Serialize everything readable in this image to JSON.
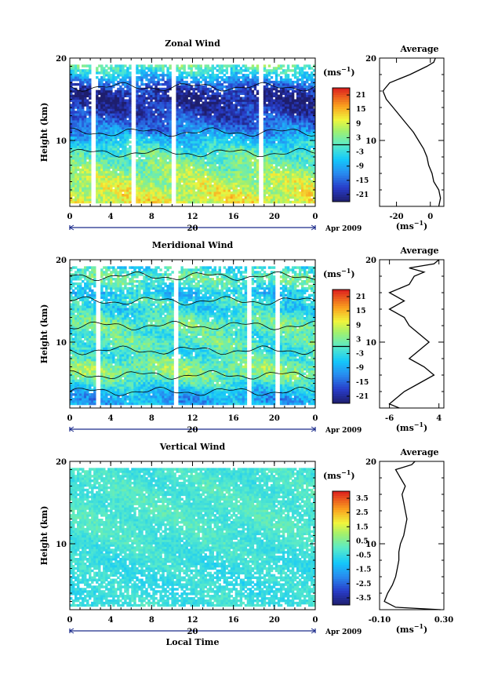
{
  "chart_data": [
    {
      "type": "heatmap",
      "title": "Zonal Wind",
      "ylabel": "Height (km)",
      "xlabel": "",
      "xlim": [
        0,
        24
      ],
      "ylim": [
        2,
        20
      ],
      "x_ticks": [
        "0",
        "4",
        "8",
        "12",
        "16",
        "20",
        "0"
      ],
      "y_ticks": [
        "10",
        "20"
      ],
      "date_marker": "20",
      "date_label": "Apr 2009",
      "colorbar": {
        "unit_prefix": "(ms",
        "unit_exp": "−1",
        "unit_suffix": ")",
        "ticks": [
          "21",
          "15",
          "9",
          "3",
          "-3",
          "-9",
          "-15",
          "-21"
        ],
        "range": [
          -24,
          24
        ],
        "zero_line": 0
      },
      "field_profile": [
        {
          "h": 3,
          "v": 10
        },
        {
          "h": 5,
          "v": 7
        },
        {
          "h": 7,
          "v": 3
        },
        {
          "h": 8.5,
          "v": 0
        },
        {
          "h": 10,
          "v": -6
        },
        {
          "h": 11,
          "v": -11
        },
        {
          "h": 12,
          "v": -15
        },
        {
          "h": 13,
          "v": -18
        },
        {
          "h": 14,
          "v": -20
        },
        {
          "h": 15,
          "v": -22
        },
        {
          "h": 16,
          "v": -20
        },
        {
          "h": 17,
          "v": -14
        },
        {
          "h": 18,
          "v": -6
        },
        {
          "h": 19,
          "v": 1
        },
        {
          "h": 20,
          "v": 4
        }
      ],
      "gaps": [
        2.3,
        6.2,
        10.2,
        18.6
      ],
      "average_panel": {
        "title": "Average",
        "xlim": [
          -30,
          8
        ],
        "x_ticks": [
          "-20",
          "0"
        ],
        "y_ticks": [
          "10",
          "20"
        ],
        "ylim": [
          2,
          20
        ],
        "unit_prefix": "(ms",
        "unit_exp": "−1",
        "unit_suffix": ")",
        "profile": [
          {
            "h": 2,
            "v": 5
          },
          {
            "h": 3,
            "v": 6
          },
          {
            "h": 4,
            "v": 5
          },
          {
            "h": 5,
            "v": 2
          },
          {
            "h": 6,
            "v": 1
          },
          {
            "h": 7,
            "v": -1
          },
          {
            "h": 8,
            "v": -2
          },
          {
            "h": 9,
            "v": -4
          },
          {
            "h": 10,
            "v": -7
          },
          {
            "h": 11,
            "v": -10
          },
          {
            "h": 12,
            "v": -14
          },
          {
            "h": 13,
            "v": -18
          },
          {
            "h": 14,
            "v": -22
          },
          {
            "h": 15,
            "v": -26
          },
          {
            "h": 16,
            "v": -28
          },
          {
            "h": 17,
            "v": -24
          },
          {
            "h": 18,
            "v": -12
          },
          {
            "h": 19,
            "v": -2
          },
          {
            "h": 19.5,
            "v": 2
          },
          {
            "h": 20,
            "v": 3
          }
        ]
      }
    },
    {
      "type": "heatmap",
      "title": "Meridional Wind",
      "ylabel": "Height (km)",
      "xlabel": "",
      "xlim": [
        0,
        24
      ],
      "ylim": [
        2,
        20
      ],
      "x_ticks": [
        "0",
        "4",
        "8",
        "12",
        "16",
        "20",
        "0"
      ],
      "y_ticks": [
        "10",
        "20"
      ],
      "date_marker": "20",
      "date_label": "Apr 2009",
      "colorbar": {
        "unit_prefix": "(ms",
        "unit_exp": "−1",
        "unit_suffix": ")",
        "ticks": [
          "21",
          "15",
          "9",
          "3",
          "-3",
          "-9",
          "-15",
          "-21"
        ],
        "range": [
          -24,
          24
        ],
        "zero_line": 0
      },
      "field_profile": [
        {
          "h": 2,
          "v": -6
        },
        {
          "h": 3,
          "v": -10
        },
        {
          "h": 4,
          "v": -7
        },
        {
          "h": 5,
          "v": -2
        },
        {
          "h": 6,
          "v": 3
        },
        {
          "h": 7,
          "v": 4
        },
        {
          "h": 8,
          "v": 0
        },
        {
          "h": 9,
          "v": -2
        },
        {
          "h": 10,
          "v": 1
        },
        {
          "h": 11,
          "v": -1
        },
        {
          "h": 12,
          "v": 2
        },
        {
          "h": 13,
          "v": 0
        },
        {
          "h": 14,
          "v": -4
        },
        {
          "h": 15,
          "v": -2
        },
        {
          "h": 16,
          "v": -6
        },
        {
          "h": 17,
          "v": -1
        },
        {
          "h": 18,
          "v": 1
        },
        {
          "h": 19,
          "v": -3
        },
        {
          "h": 20,
          "v": 2
        }
      ],
      "gaps": [
        2.7,
        10.3,
        17.6,
        20.4
      ],
      "average_panel": {
        "title": "Average",
        "xlim": [
          -8,
          5
        ],
        "x_ticks": [
          "-6",
          "4"
        ],
        "y_ticks": [
          "10",
          "20"
        ],
        "ylim": [
          2,
          20
        ],
        "unit_prefix": "(ms",
        "unit_exp": "−1",
        "unit_suffix": ")",
        "profile": [
          {
            "h": 2,
            "v": -4
          },
          {
            "h": 2.5,
            "v": -6
          },
          {
            "h": 3,
            "v": -5
          },
          {
            "h": 4,
            "v": -3
          },
          {
            "h": 5,
            "v": 0
          },
          {
            "h": 6,
            "v": 3
          },
          {
            "h": 7,
            "v": 1
          },
          {
            "h": 8,
            "v": -2
          },
          {
            "h": 9,
            "v": 0
          },
          {
            "h": 10,
            "v": 2
          },
          {
            "h": 11,
            "v": 0
          },
          {
            "h": 12,
            "v": -2
          },
          {
            "h": 13,
            "v": -3
          },
          {
            "h": 14,
            "v": -6
          },
          {
            "h": 15,
            "v": -3
          },
          {
            "h": 16,
            "v": -6
          },
          {
            "h": 17,
            "v": -2
          },
          {
            "h": 18,
            "v": -1
          },
          {
            "h": 18.5,
            "v": 1
          },
          {
            "h": 19,
            "v": -2
          },
          {
            "h": 19.5,
            "v": 3
          },
          {
            "h": 20,
            "v": 4
          }
        ]
      }
    },
    {
      "type": "heatmap",
      "title": "Vertical Wind",
      "ylabel": "Height (km)",
      "xlabel": "Local Time",
      "xlim": [
        0,
        24
      ],
      "ylim": [
        2,
        20
      ],
      "x_ticks": [
        "0",
        "4",
        "8",
        "12",
        "16",
        "20",
        "0"
      ],
      "y_ticks": [
        "10",
        "20"
      ],
      "date_marker": "20",
      "date_label": "Apr 2009",
      "colorbar": {
        "unit_prefix": "(ms",
        "unit_exp": "−1",
        "unit_suffix": ")",
        "ticks": [
          "3.5",
          "2.5",
          "1.5",
          "0.5",
          "-0.5",
          "-1.5",
          "-2.5",
          "-3.5"
        ],
        "range": [
          -4,
          4
        ],
        "zero_line": null
      },
      "field_profile": [
        {
          "h": 2,
          "v": -0.3
        },
        {
          "h": 5,
          "v": -0.5
        },
        {
          "h": 8,
          "v": -0.4
        },
        {
          "h": 11,
          "v": -0.2
        },
        {
          "h": 14,
          "v": -0.1
        },
        {
          "h": 17,
          "v": -0.2
        },
        {
          "h": 20,
          "v": -0.3
        }
      ],
      "gaps": [],
      "average_panel": {
        "title": "Average",
        "xlim": [
          -0.1,
          0.3
        ],
        "x_ticks": [
          "-0.10",
          "0.30"
        ],
        "y_ticks": [
          "10",
          "20"
        ],
        "ylim": [
          2,
          20
        ],
        "unit_prefix": "(ms",
        "unit_exp": "−1",
        "unit_suffix": ")",
        "profile": [
          {
            "h": 2,
            "v": 0.28
          },
          {
            "h": 2.3,
            "v": 0.0
          },
          {
            "h": 3,
            "v": -0.07
          },
          {
            "h": 4,
            "v": -0.05
          },
          {
            "h": 5,
            "v": -0.02
          },
          {
            "h": 6,
            "v": 0.0
          },
          {
            "h": 7,
            "v": 0.01
          },
          {
            "h": 8,
            "v": 0.02
          },
          {
            "h": 9,
            "v": 0.02
          },
          {
            "h": 10,
            "v": 0.03
          },
          {
            "h": 11,
            "v": 0.05
          },
          {
            "h": 12,
            "v": 0.06
          },
          {
            "h": 13,
            "v": 0.07
          },
          {
            "h": 14,
            "v": 0.06
          },
          {
            "h": 15,
            "v": 0.05
          },
          {
            "h": 16,
            "v": 0.04
          },
          {
            "h": 17,
            "v": 0.06
          },
          {
            "h": 18,
            "v": 0.03
          },
          {
            "h": 19,
            "v": 0.0
          },
          {
            "h": 19.6,
            "v": 0.1
          },
          {
            "h": 20,
            "v": 0.12
          }
        ]
      }
    }
  ]
}
